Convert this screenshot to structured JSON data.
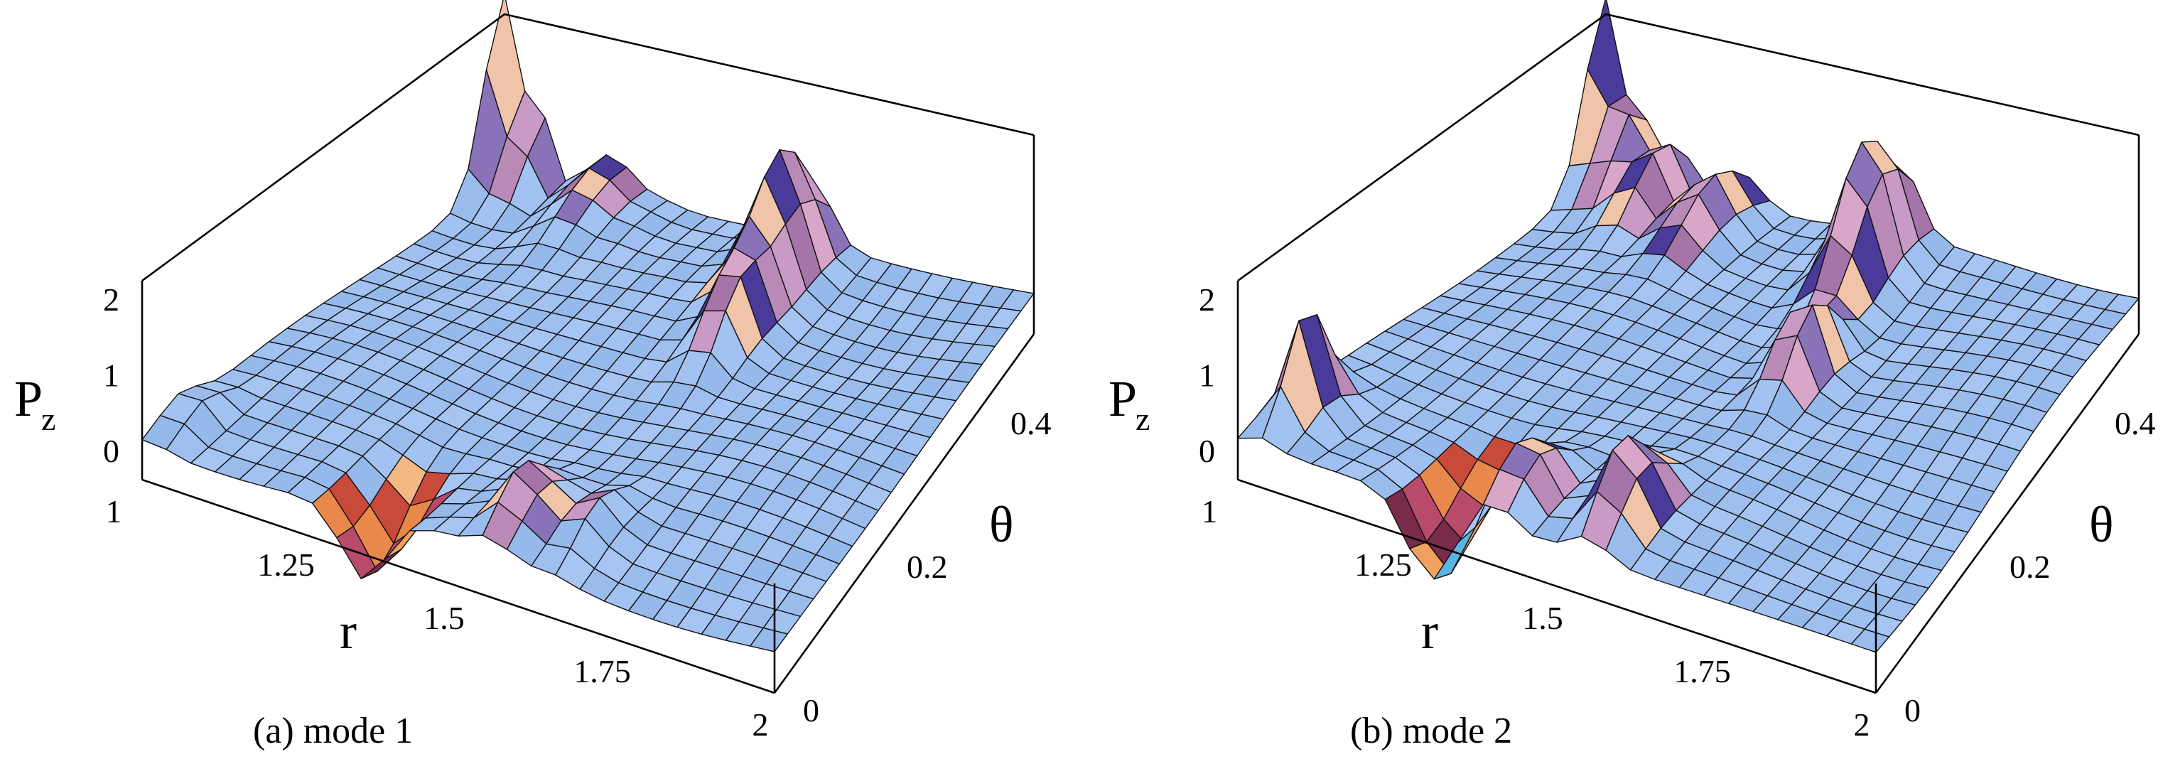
{
  "chart_data": [
    {
      "type": "surface3d",
      "caption": "(a) mode 1",
      "zlabel_main": "P",
      "zlabel_sub": "z",
      "xlabel": "r",
      "ylabel": "θ",
      "xlim": [
        1,
        2
      ],
      "ylim": [
        0,
        0.5
      ],
      "zlim": [
        0,
        3
      ],
      "x_ticks": [
        "1",
        "1.25",
        "1.5",
        "1.75",
        "2"
      ],
      "y_ticks": [
        "0",
        "0.2",
        "0.4"
      ],
      "z_ticks": [
        "0",
        "1",
        "2"
      ],
      "x_tick_values": [
        1,
        1.25,
        1.5,
        1.75,
        2
      ],
      "y_tick_values": [
        0,
        0.2,
        0.4
      ],
      "z_tick_values": [
        0,
        1,
        2
      ],
      "features": [
        {
          "r": 1.0,
          "theta": 0.5,
          "pz": 3.0,
          "width": 0.03
        },
        {
          "r": 1.06,
          "theta": 0.5,
          "pz": 1.8,
          "width": 0.03
        },
        {
          "r": 1.2,
          "theta": 0.48,
          "pz": 1.2,
          "width": 0.06
        },
        {
          "r": 1.3,
          "theta": 0.46,
          "pz": 0.7,
          "width": 0.05
        },
        {
          "r": 1.58,
          "theta": 0.45,
          "pz": 2.2,
          "width": 0.05
        },
        {
          "r": 1.6,
          "theta": 0.35,
          "pz": 1.5,
          "width": 0.04
        },
        {
          "r": 1.02,
          "theta": 0.05,
          "pz": 1.0,
          "width": 0.03
        },
        {
          "r": 1.55,
          "theta": 0.06,
          "pz": 1.3,
          "width": 0.04
        },
        {
          "r": 1.65,
          "theta": 0.07,
          "pz": 1.0,
          "width": 0.04
        },
        {
          "r": 1.35,
          "theta": 0.02,
          "pz": -0.5,
          "width": 0.05
        }
      ]
    },
    {
      "type": "surface3d",
      "caption": "(b) mode 2",
      "zlabel_main": "P",
      "zlabel_sub": "z",
      "xlabel": "r",
      "ylabel": "θ",
      "xlim": [
        1,
        2
      ],
      "ylim": [
        0,
        0.5
      ],
      "zlim": [
        0,
        3
      ],
      "x_ticks": [
        "1",
        "1.25",
        "1.5",
        "1.75",
        "2"
      ],
      "y_ticks": [
        "0",
        "0.2",
        "0.4"
      ],
      "z_ticks": [
        "0",
        "1",
        "2"
      ],
      "x_tick_values": [
        1,
        1.25,
        1.5,
        1.75,
        2
      ],
      "y_tick_values": [
        0,
        0.2,
        0.4
      ],
      "z_tick_values": [
        0,
        1,
        2
      ],
      "features": [
        {
          "r": 1.0,
          "theta": 0.5,
          "pz": 2.9,
          "width": 0.03
        },
        {
          "r": 1.06,
          "theta": 0.48,
          "pz": 2.0,
          "width": 0.03
        },
        {
          "r": 1.14,
          "theta": 0.46,
          "pz": 1.6,
          "width": 0.04
        },
        {
          "r": 1.26,
          "theta": 0.45,
          "pz": 1.4,
          "width": 0.05
        },
        {
          "r": 1.55,
          "theta": 0.45,
          "pz": 2.4,
          "width": 0.05
        },
        {
          "r": 1.6,
          "theta": 0.3,
          "pz": 1.8,
          "width": 0.04
        },
        {
          "r": 1.04,
          "theta": 0.06,
          "pz": 2.0,
          "width": 0.03
        },
        {
          "r": 1.4,
          "theta": 0.05,
          "pz": 1.4,
          "width": 0.04
        },
        {
          "r": 1.55,
          "theta": 0.06,
          "pz": 1.6,
          "width": 0.04
        },
        {
          "r": 1.3,
          "theta": 0.02,
          "pz": -0.6,
          "width": 0.05
        }
      ]
    }
  ]
}
